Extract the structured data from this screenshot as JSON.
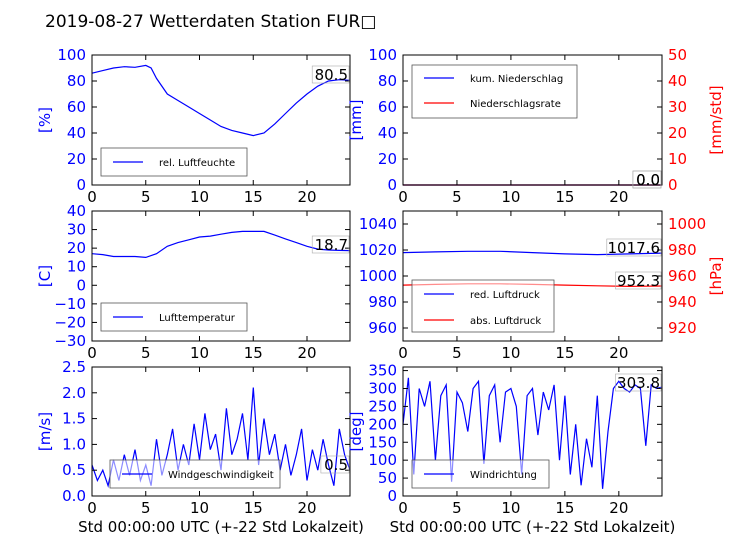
{
  "figure": {
    "title": "2019-08-27 Wetterdaten Station FUR□"
  },
  "chart_data": [
    {
      "type": "line",
      "panel": "top-left",
      "xlim": [
        0,
        24
      ],
      "xticks": [
        "0",
        "5",
        "10",
        "15",
        "20"
      ],
      "ylim": [
        0,
        100
      ],
      "yticks": [
        "0",
        "20",
        "40",
        "60",
        "80",
        "100"
      ],
      "ylabel": "[%]",
      "xlabel": "",
      "legend": {
        "placement": "lower-left",
        "entries": [
          "rel. Luftfeuchte"
        ]
      },
      "annotations": [
        "80.5"
      ],
      "series": [
        {
          "name": "rel. Luftfeuchte",
          "color": "#0000ff",
          "x": [
            0,
            1,
            2,
            3,
            4,
            5,
            5.5,
            6,
            7,
            8,
            9,
            10,
            11,
            12,
            13,
            14,
            15,
            16,
            17,
            18,
            19,
            20,
            21,
            22,
            23,
            24
          ],
          "y": [
            86,
            88,
            90,
            91,
            90.5,
            92,
            90,
            82,
            70,
            65,
            60,
            55,
            50,
            45,
            42,
            40,
            38,
            40,
            47,
            55,
            63,
            70,
            76,
            80,
            81,
            80.5
          ]
        }
      ]
    },
    {
      "type": "line",
      "panel": "top-right",
      "xlim": [
        0,
        24
      ],
      "xticks": [
        "0",
        "5",
        "10",
        "15",
        "20"
      ],
      "ylim": [
        0,
        100
      ],
      "yticks": [
        "0",
        "20",
        "40",
        "60",
        "80",
        "100"
      ],
      "ylabel": "[mm]",
      "ylim_right": [
        0,
        50
      ],
      "yticks_right": [
        "0",
        "10",
        "20",
        "30",
        "40",
        "50"
      ],
      "ylabel_right": "[mm/std]",
      "legend": {
        "placement": "upper-left",
        "entries": [
          "kum. Niederschlag",
          "Niederschlagsrate"
        ]
      },
      "annotations": [
        "0.0",
        "0.0"
      ],
      "series": [
        {
          "name": "kum. Niederschlag",
          "color": "#0000ff",
          "x": [
            0,
            24
          ],
          "y": [
            0,
            0
          ]
        },
        {
          "name": "Niederschlagsrate",
          "color": "#ff0000",
          "x": [
            0,
            24
          ],
          "y": [
            0,
            0
          ]
        }
      ]
    },
    {
      "type": "line",
      "panel": "middle-left",
      "xlim": [
        0,
        24
      ],
      "xticks": [
        "0",
        "5",
        "10",
        "15",
        "20"
      ],
      "ylim": [
        -30,
        40
      ],
      "yticks": [
        "−30",
        "−20",
        "−10",
        "0",
        "10",
        "20",
        "30",
        "40"
      ],
      "ylabel": "[C]",
      "legend": {
        "placement": "lower-left",
        "entries": [
          "Lufttemperatur"
        ]
      },
      "annotations": [
        "18.7"
      ],
      "series": [
        {
          "name": "Lufttemperatur",
          "color": "#0000ff",
          "x": [
            0,
            1,
            2,
            3,
            4,
            5,
            6,
            7,
            8,
            9,
            10,
            11,
            12,
            13,
            14,
            15,
            16,
            17,
            18,
            19,
            20,
            21,
            22,
            23,
            24
          ],
          "y": [
            17,
            16.5,
            15.5,
            15.5,
            15.5,
            15,
            17,
            21,
            23,
            24.5,
            26,
            26.5,
            27.5,
            28.5,
            29,
            29,
            29,
            27,
            25,
            23,
            21,
            19.5,
            19,
            18.8,
            18.7
          ]
        }
      ]
    },
    {
      "type": "line",
      "panel": "middle-right",
      "xlim": [
        0,
        24
      ],
      "xticks": [
        "0",
        "5",
        "10",
        "15",
        "20"
      ],
      "ylim": [
        950,
        1050
      ],
      "yticks": [
        "960",
        "980",
        "1000",
        "1020",
        "1040"
      ],
      "ylim_right": [
        910,
        1010
      ],
      "yticks_right": [
        "920",
        "940",
        "960",
        "980",
        "1000"
      ],
      "ylabel_right": "[hPa]",
      "legend": {
        "placement": "lower-left",
        "entries": [
          "red. Luftdruck",
          "abs. Luftdruck"
        ]
      },
      "annotations": [
        "1017.6",
        "952.3"
      ],
      "series": [
        {
          "name": "red. Luftdruck",
          "color": "#0000ff",
          "x": [
            0,
            3,
            6,
            9,
            12,
            15,
            18,
            21,
            24
          ],
          "y": [
            1018,
            1018.5,
            1019,
            1019,
            1018,
            1017,
            1016.5,
            1017,
            1017.6
          ]
        },
        {
          "name": "abs. Luftdruck",
          "color": "#ff0000",
          "x": [
            0,
            3,
            6,
            9,
            12,
            15,
            18,
            21,
            24
          ],
          "y": [
            953,
            953.5,
            954,
            954,
            953.5,
            953,
            952.5,
            952,
            952.3
          ]
        }
      ]
    },
    {
      "type": "line",
      "panel": "bottom-left",
      "xlim": [
        0,
        24
      ],
      "xticks": [
        "0",
        "5",
        "10",
        "15",
        "20"
      ],
      "ylim": [
        0,
        2.5
      ],
      "yticks": [
        "0.0",
        "0.5",
        "1.0",
        "1.5",
        "2.0",
        "2.5"
      ],
      "ylabel": "[m/s]",
      "xlabel": "Std 00:00:00 UTC (+-22 Std Lokalzeit)",
      "legend": {
        "placement": "lower-center",
        "entries": [
          "Windgeschwindigkeit"
        ]
      },
      "annotations": [
        "0.5"
      ],
      "series": [
        {
          "name": "Windgeschwindigkeit",
          "color": "#0000ff",
          "x": [
            0,
            0.5,
            1,
            1.5,
            2,
            2.5,
            3,
            3.5,
            4,
            4.5,
            5,
            5.5,
            6,
            6.5,
            7,
            7.5,
            8,
            8.5,
            9,
            9.5,
            10,
            10.5,
            11,
            11.5,
            12,
            12.5,
            13,
            13.5,
            14,
            14.5,
            15,
            15.5,
            16,
            16.5,
            17,
            17.5,
            18,
            18.5,
            19,
            19.5,
            20,
            20.5,
            21,
            21.5,
            22,
            22.5,
            23,
            23.5,
            24
          ],
          "y": [
            0.6,
            0.3,
            0.5,
            0.2,
            0.7,
            0.3,
            0.8,
            0.4,
            0.9,
            0.3,
            0.6,
            0.2,
            1.1,
            0.4,
            0.8,
            1.3,
            0.5,
            1.0,
            0.6,
            1.4,
            0.7,
            1.6,
            0.9,
            1.2,
            0.5,
            1.7,
            0.8,
            1.1,
            1.6,
            0.7,
            2.1,
            0.6,
            1.5,
            0.8,
            1.2,
            0.5,
            1.0,
            0.4,
            0.8,
            1.3,
            0.3,
            0.9,
            0.5,
            1.1,
            0.6,
            0.2,
            1.3,
            0.8,
            0.5
          ]
        }
      ]
    },
    {
      "type": "line",
      "panel": "bottom-right",
      "xlim": [
        0,
        24
      ],
      "xticks": [
        "0",
        "5",
        "10",
        "15",
        "20"
      ],
      "ylim": [
        0,
        360
      ],
      "yticks": [
        "0",
        "50",
        "100",
        "150",
        "200",
        "250",
        "300",
        "350"
      ],
      "ylabel": "[deg]",
      "xlabel": "Std 00:00:00 UTC (+-22 Std Lokalzeit)",
      "legend": {
        "placement": "lower-left",
        "entries": [
          "Windrichtung"
        ]
      },
      "annotations": [
        "303.8"
      ],
      "series": [
        {
          "name": "Windrichtung",
          "color": "#0000ff",
          "x": [
            0,
            0.5,
            1,
            1.5,
            2,
            2.5,
            3,
            3.5,
            4,
            4.5,
            5,
            5.5,
            6,
            6.5,
            7,
            7.5,
            8,
            8.5,
            9,
            9.5,
            10,
            10.5,
            11,
            11.5,
            12,
            12.5,
            13,
            13.5,
            14,
            14.5,
            15,
            15.5,
            16,
            16.5,
            17,
            17.5,
            18,
            18.5,
            19,
            19.5,
            20,
            20.5,
            21,
            21.5,
            22,
            22.5,
            23,
            23.5,
            24
          ],
          "y": [
            200,
            330,
            60,
            300,
            250,
            320,
            100,
            280,
            310,
            40,
            290,
            260,
            180,
            300,
            320,
            90,
            280,
            310,
            150,
            290,
            300,
            250,
            60,
            280,
            300,
            170,
            290,
            240,
            310,
            100,
            280,
            60,
            200,
            30,
            160,
            80,
            280,
            20,
            180,
            300,
            320,
            300,
            290,
            310,
            300,
            140,
            310,
            300,
            303.8
          ]
        }
      ]
    }
  ]
}
